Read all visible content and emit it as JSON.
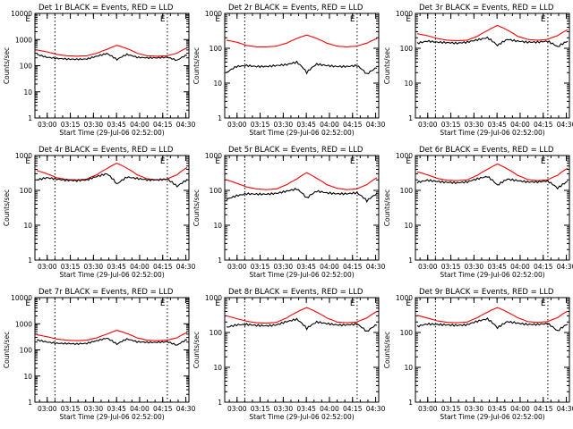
{
  "chart_data": [
    {
      "type": "line",
      "title": "Det 1r BLACK = Events, RED = LLD",
      "ylabel": "Counts/sec",
      "xlabel": "Start Time (29-Jul-06 02:52:00)",
      "yscale": "log",
      "ylim": [
        1,
        10000
      ],
      "yticks": [
        "1",
        "10",
        "100",
        "1000",
        "10000"
      ],
      "xlim": [
        "02:52",
        "04:32"
      ],
      "xticks": [
        "03:00",
        "03:15",
        "03:30",
        "03:45",
        "04:00",
        "04:15",
        "04:30"
      ],
      "marker_label": "E",
      "event_lines": [
        "03:05",
        "04:18"
      ],
      "red": [
        400,
        340,
        270,
        240,
        230,
        240,
        300,
        420,
        600,
        450,
        300,
        240,
        230,
        240,
        300,
        480
      ],
      "black": [
        270,
        210,
        190,
        180,
        175,
        180,
        230,
        290,
        170,
        270,
        210,
        200,
        200,
        210,
        160,
        260
      ]
    },
    {
      "type": "line",
      "title": "Det 2r BLACK = Events, RED = LLD",
      "ylabel": "Counts/sec",
      "xlabel": "Start Time (29-Jul-06 02:52:00)",
      "yscale": "log",
      "ylim": [
        1,
        1000
      ],
      "yticks": [
        "1",
        "10",
        "100",
        "1000"
      ],
      "xlim": [
        "02:52",
        "04:32"
      ],
      "xticks": [
        "03:00",
        "03:15",
        "03:30",
        "03:45",
        "04:00",
        "04:15",
        "04:30"
      ],
      "marker_label": "E",
      "event_lines": [
        "03:05",
        "04:18"
      ],
      "red": [
        170,
        150,
        120,
        110,
        110,
        115,
        140,
        190,
        240,
        190,
        140,
        115,
        110,
        115,
        140,
        190
      ],
      "black": [
        20,
        30,
        32,
        30,
        30,
        32,
        34,
        40,
        20,
        35,
        32,
        30,
        30,
        32,
        18,
        28
      ]
    },
    {
      "type": "line",
      "title": "Det 3r BLACK = Events, RED = LLD",
      "ylabel": "Counts/sec",
      "xlabel": "Start Time (29-Jul-06 02:52:00)",
      "yscale": "log",
      "ylim": [
        1,
        1000
      ],
      "yticks": [
        "1",
        "10",
        "100",
        "1000"
      ],
      "xlim": [
        "02:52",
        "04:32"
      ],
      "xticks": [
        "03:00",
        "03:15",
        "03:30",
        "03:45",
        "04:00",
        "04:15",
        "04:30"
      ],
      "marker_label": "E",
      "event_lines": [
        "03:05",
        "04:18"
      ],
      "red": [
        260,
        230,
        190,
        170,
        165,
        170,
        220,
        320,
        450,
        330,
        220,
        180,
        170,
        180,
        230,
        340
      ],
      "black": [
        140,
        160,
        150,
        145,
        140,
        150,
        175,
        200,
        120,
        180,
        160,
        150,
        150,
        160,
        110,
        160
      ]
    },
    {
      "type": "line",
      "title": "Det 4r BLACK = Events, RED = LLD",
      "ylabel": "Counts/sec",
      "xlabel": "Start Time (29-Jul-06 02:52:00)",
      "yscale": "log",
      "ylim": [
        1,
        1000
      ],
      "yticks": [
        "1",
        "10",
        "100",
        "1000"
      ],
      "xlim": [
        "02:52",
        "04:32"
      ],
      "xticks": [
        "03:00",
        "03:15",
        "03:30",
        "03:45",
        "04:00",
        "04:15",
        "04:30"
      ],
      "marker_label": "E",
      "event_lines": [
        "03:05",
        "04:18"
      ],
      "red": [
        370,
        300,
        230,
        205,
        200,
        210,
        280,
        420,
        600,
        430,
        280,
        215,
        200,
        210,
        280,
        450
      ],
      "black": [
        200,
        230,
        210,
        195,
        190,
        200,
        250,
        300,
        150,
        240,
        220,
        200,
        200,
        210,
        130,
        200
      ]
    },
    {
      "type": "line",
      "title": "Det 5r BLACK = Events, RED = LLD",
      "ylabel": "Counts/sec",
      "xlabel": "Start Time (29-Jul-06 02:52:00)",
      "yscale": "log",
      "ylim": [
        1,
        1000
      ],
      "yticks": [
        "1",
        "10",
        "100",
        "1000"
      ],
      "xlim": [
        "02:52",
        "04:32"
      ],
      "xticks": [
        "03:00",
        "03:15",
        "03:30",
        "03:45",
        "04:00",
        "04:15",
        "04:30"
      ],
      "marker_label": "E",
      "event_lines": [
        "03:05",
        "04:18"
      ],
      "red": [
        200,
        160,
        125,
        110,
        105,
        110,
        145,
        210,
        320,
        220,
        145,
        115,
        105,
        110,
        145,
        230
      ],
      "black": [
        55,
        70,
        80,
        78,
        78,
        82,
        95,
        110,
        60,
        95,
        85,
        80,
        80,
        85,
        50,
        80
      ]
    },
    {
      "type": "line",
      "title": "Det 6r BLACK = Events, RED = LLD",
      "ylabel": "Counts/sec",
      "xlabel": "Start Time (29-Jul-06 02:52:00)",
      "yscale": "log",
      "ylim": [
        1,
        1000
      ],
      "yticks": [
        "1",
        "10",
        "100",
        "1000"
      ],
      "xlim": [
        "02:52",
        "04:32"
      ],
      "xticks": [
        "03:00",
        "03:15",
        "03:30",
        "03:45",
        "04:00",
        "04:15",
        "04:30"
      ],
      "marker_label": "E",
      "event_lines": [
        "03:05",
        "04:18"
      ],
      "red": [
        340,
        280,
        220,
        195,
        190,
        200,
        270,
        400,
        570,
        410,
        270,
        205,
        190,
        200,
        270,
        430
      ],
      "black": [
        170,
        195,
        180,
        170,
        165,
        175,
        215,
        250,
        140,
        210,
        190,
        175,
        175,
        185,
        115,
        180
      ]
    },
    {
      "type": "line",
      "title": "Det 7r BLACK = Events, RED = LLD",
      "ylabel": "Counts/sec",
      "xlabel": "Start Time (29-Jul-06 02:52:00)",
      "yscale": "log",
      "ylim": [
        1,
        10000
      ],
      "yticks": [
        "1",
        "10",
        "100",
        "1000",
        "10000"
      ],
      "xlim": [
        "02:52",
        "04:32"
      ],
      "xticks": [
        "03:00",
        "03:15",
        "03:30",
        "03:45",
        "04:00",
        "04:15",
        "04:30"
      ],
      "marker_label": "E",
      "event_lines": [
        "03:05",
        "04:18"
      ],
      "red": [
        380,
        320,
        260,
        235,
        225,
        235,
        290,
        400,
        560,
        420,
        290,
        235,
        225,
        235,
        290,
        460
      ],
      "black": [
        240,
        200,
        180,
        175,
        170,
        178,
        225,
        280,
        165,
        260,
        205,
        195,
        195,
        205,
        150,
        250
      ]
    },
    {
      "type": "line",
      "title": "Det 8r BLACK = Events, RED = LLD",
      "ylabel": "Counts/sec",
      "xlabel": "Start Time (29-Jul-06 02:52:00)",
      "yscale": "log",
      "ylim": [
        1,
        1000
      ],
      "yticks": [
        "1",
        "10",
        "100",
        "1000"
      ],
      "xlim": [
        "02:52",
        "04:32"
      ],
      "xticks": [
        "03:00",
        "03:15",
        "03:30",
        "03:45",
        "04:00",
        "04:15",
        "04:30"
      ],
      "marker_label": "E",
      "event_lines": [
        "03:05",
        "04:18"
      ],
      "red": [
        300,
        250,
        210,
        190,
        185,
        195,
        260,
        380,
        520,
        380,
        260,
        200,
        190,
        200,
        260,
        400
      ],
      "black": [
        140,
        165,
        170,
        160,
        155,
        165,
        205,
        240,
        130,
        200,
        180,
        165,
        165,
        175,
        105,
        170
      ]
    },
    {
      "type": "line",
      "title": "Det 9r BLACK = Events, RED = LLD",
      "ylabel": "Counts/sec",
      "xlabel": "Start Time (29-Jul-06 02:52:00)",
      "yscale": "log",
      "ylim": [
        1,
        1000
      ],
      "yticks": [
        "1",
        "10",
        "100",
        "1000"
      ],
      "xlim": [
        "02:52",
        "04:32"
      ],
      "xticks": [
        "03:00",
        "03:15",
        "03:30",
        "03:45",
        "04:00",
        "04:15",
        "04:30"
      ],
      "marker_label": "E",
      "event_lines": [
        "03:05",
        "04:18"
      ],
      "red": [
        310,
        260,
        215,
        195,
        190,
        200,
        265,
        380,
        520,
        380,
        265,
        205,
        195,
        205,
        265,
        410
      ],
      "black": [
        150,
        175,
        170,
        165,
        160,
        168,
        210,
        245,
        135,
        205,
        185,
        170,
        170,
        180,
        110,
        175
      ]
    }
  ],
  "colors": {
    "red": "#ff0000",
    "black": "#000000",
    "axis": "#000000",
    "background": "#ffffff"
  }
}
